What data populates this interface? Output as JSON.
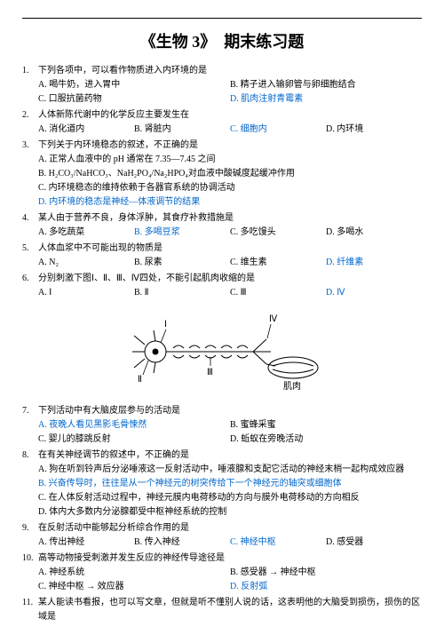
{
  "title": "《生物 3》　期末练习题",
  "questions": [
    {
      "num": "1.",
      "text": "下列各项中，可以看作物质进入内环境的是",
      "options": [
        {
          "label": "A.",
          "text": "喝牛奶，进入胃中",
          "width": "w2",
          "blue": false
        },
        {
          "label": "B.",
          "text": "精子进入输卵管与卵细胞结合",
          "width": "w2",
          "blue": false
        },
        {
          "label": "C.",
          "text": "口服抗菌药物",
          "width": "w2",
          "blue": false
        },
        {
          "label": "D.",
          "text": "肌肉注射青霉素",
          "width": "w2",
          "blue": true
        }
      ]
    },
    {
      "num": "2.",
      "text": "人体新陈代谢中的化学反应主要发生在",
      "options": [
        {
          "label": "A.",
          "text": "消化道内",
          "width": "w4",
          "blue": false
        },
        {
          "label": "B.",
          "text": "肾脏内",
          "width": "w4",
          "blue": false
        },
        {
          "label": "C.",
          "text": "细胞内",
          "width": "w4",
          "blue": true
        },
        {
          "label": "D.",
          "text": "内环境",
          "width": "w4",
          "blue": false
        }
      ]
    },
    {
      "num": "3.",
      "text": "下列关于内环境稳态的叙述，不正确的是",
      "options": [
        {
          "label": "A.",
          "text": "正常人血液中的 pH 通常在 7.35—7.45 之间",
          "width": "full",
          "blue": false
        },
        {
          "label": "B.",
          "text": "H₂CO₃/NaHCO₃、NaH₂PO₄/Na₂HPO₄对血液中酸碱度起缓冲作用",
          "width": "full",
          "blue": false
        },
        {
          "label": "C.",
          "text": "内环境稳态的维持依赖于各器官系统的协调活动",
          "width": "full",
          "blue": false
        },
        {
          "label": "D.",
          "text": "内环境的稳态是神经—体液调节的结果",
          "width": "full",
          "blue": true
        }
      ]
    },
    {
      "num": "4.",
      "text": "某人由于营养不良，身体浮肿，其食疗补救措施是",
      "options": [
        {
          "label": "A.",
          "text": "多吃蔬菜",
          "width": "w4",
          "blue": false
        },
        {
          "label": "B.",
          "text": "多喝豆浆",
          "width": "w4",
          "blue": true
        },
        {
          "label": "C.",
          "text": "多吃馒头",
          "width": "w4",
          "blue": false
        },
        {
          "label": "D.",
          "text": "多喝水",
          "width": "w4",
          "blue": false
        }
      ]
    },
    {
      "num": "5.",
      "text": "人体血浆中不可能出现的物质是",
      "options": [
        {
          "label": "A.",
          "text": "N₂",
          "width": "w4",
          "blue": false
        },
        {
          "label": "B.",
          "text": "尿素",
          "width": "w4",
          "blue": false
        },
        {
          "label": "C.",
          "text": "维生素",
          "width": "w4",
          "blue": false
        },
        {
          "label": "D.",
          "text": "纤维素",
          "width": "w4",
          "blue": true
        }
      ]
    },
    {
      "num": "6.",
      "text": "分别刺激下图Ⅰ、Ⅱ、Ⅲ、Ⅳ四处，不能引起肌肉收缩的是",
      "options": [
        {
          "label": "A.",
          "text": "Ⅰ",
          "width": "w4",
          "blue": false
        },
        {
          "label": "B.",
          "text": "Ⅱ",
          "width": "w4",
          "blue": false
        },
        {
          "label": "C.",
          "text": "Ⅲ",
          "width": "w4",
          "blue": false
        },
        {
          "label": "D.",
          "text": "Ⅳ",
          "width": "w4",
          "blue": true
        }
      ]
    }
  ],
  "questions2": [
    {
      "num": "7.",
      "text": "下列活动中有大脑皮层参与的活动是",
      "options": [
        {
          "label": "A.",
          "text": "夜晚人看见黑影毛骨悚然",
          "width": "w2",
          "blue": true
        },
        {
          "label": "B.",
          "text": "蜜蜂采蜜",
          "width": "w2",
          "blue": false
        },
        {
          "label": "C.",
          "text": "婴儿的膝跳反射",
          "width": "w2",
          "blue": false
        },
        {
          "label": "D.",
          "text": "蚯蚁在旁晚活动",
          "width": "w2",
          "blue": false
        }
      ]
    },
    {
      "num": "8.",
      "text": "在有关神经调节的叙述中，不正确的是",
      "options": [
        {
          "label": "A.",
          "text": "狗在听到铃声后分泌唾液这一反射活动中，唾液腺和支配它活动的神经末梢一起构成效应器",
          "width": "full",
          "blue": false
        },
        {
          "label": "B.",
          "text": "兴奋传导时，往往是从一个神经元的树突传给下一个神经元的轴突或细胞体",
          "width": "full",
          "blue": true
        },
        {
          "label": "C.",
          "text": "在人体反射活动过程中，神经元膜内电荷移动的方向与膜外电荷移动的方向相反",
          "width": "full",
          "blue": false
        },
        {
          "label": "D.",
          "text": "体内大多数内分泌腺都受中枢神经系统的控制",
          "width": "full",
          "blue": false
        }
      ]
    },
    {
      "num": "9.",
      "text": "在反射活动中能够起分析综合作用的是",
      "options": [
        {
          "label": "A.",
          "text": "传出神经",
          "width": "w4",
          "blue": false
        },
        {
          "label": "B.",
          "text": "传入神经",
          "width": "w4",
          "blue": false
        },
        {
          "label": "C.",
          "text": "神经中枢",
          "width": "w4",
          "blue": true
        },
        {
          "label": "D.",
          "text": "感受器",
          "width": "w4",
          "blue": false
        }
      ]
    },
    {
      "num": "10.",
      "text": "高等动物接受刺激并发生反应的神经传导途径是",
      "lines": [
        {
          "label": "A.",
          "text": "神经系统",
          "width": "w2",
          "blue": false
        },
        {
          "label": "B.",
          "text": "感受器 → 神经中枢",
          "width": "w2",
          "blue": false
        },
        {
          "label": "C.",
          "text": "神经中枢 → 效应器",
          "width": "w2",
          "blue": false
        },
        {
          "label": "D.",
          "text": "反射弧",
          "width": "w2",
          "blue": true
        }
      ]
    },
    {
      "num": "11.",
      "text": "某人能读书看报，也可以写文章，但就是听不懂别人说的话，这表明他的大脑受到损伤，损伤的区域是"
    }
  ],
  "diagram": {
    "labels": [
      "Ⅰ",
      "Ⅱ",
      "Ⅲ",
      "Ⅳ",
      "肌肉"
    ]
  }
}
